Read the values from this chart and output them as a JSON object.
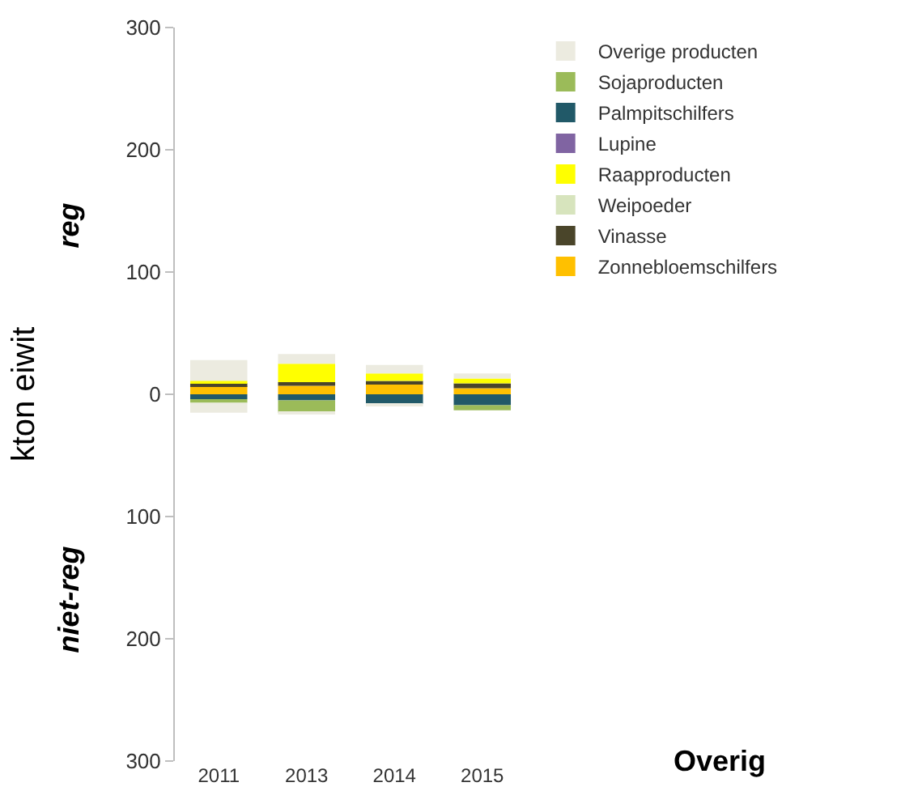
{
  "chart_data": {
    "type": "bar",
    "stacked": true,
    "ylabel": "kton eiwit",
    "categories": [
      "2011",
      "2013",
      "2014",
      "2015"
    ],
    "series": [
      {
        "name": "Zonnebloemschilfers",
        "color": "#ffc000",
        "values": [
          7,
          7,
          8,
          5
        ]
      },
      {
        "name": "Vinasse",
        "color": "#4a452a",
        "values": [
          2,
          3,
          3,
          4
        ]
      },
      {
        "name": "Weipoeder",
        "color": "#d7e4bd",
        "values": [
          0,
          0,
          0,
          0
        ]
      },
      {
        "name": "Raapproducten",
        "color": "#ffff00",
        "values": [
          2,
          15,
          6,
          4
        ]
      },
      {
        "name": "Lupine",
        "color": "#8064a2",
        "values": [
          0,
          0,
          0,
          0
        ]
      },
      {
        "name": "Palmpitschilfers",
        "color": "#215968",
        "values": [
          -4,
          -5,
          -8,
          -9
        ]
      },
      {
        "name": "Sojaproducten",
        "color": "#9bbb59",
        "values": [
          -3,
          -10,
          0,
          -4
        ]
      },
      {
        "name": "Overige producten",
        "color": "#ecebe0",
        "values": [
          17,
          8,
          7,
          4
        ]
      },
      {
        "color": "#ecebe0",
        "values": [
          -8,
          -1,
          -1,
          0
        ]
      }
    ],
    "ylim": [
      -300,
      300
    ],
    "yticks": [
      {
        "value": -300,
        "label": "300"
      },
      {
        "value": -200,
        "label": "200"
      },
      {
        "value": -100,
        "label": "100"
      },
      0,
      100,
      200,
      300
    ],
    "grid": false,
    "legend": "right",
    "annotations": [
      "reg",
      "niet-reg",
      "Overig"
    ]
  }
}
